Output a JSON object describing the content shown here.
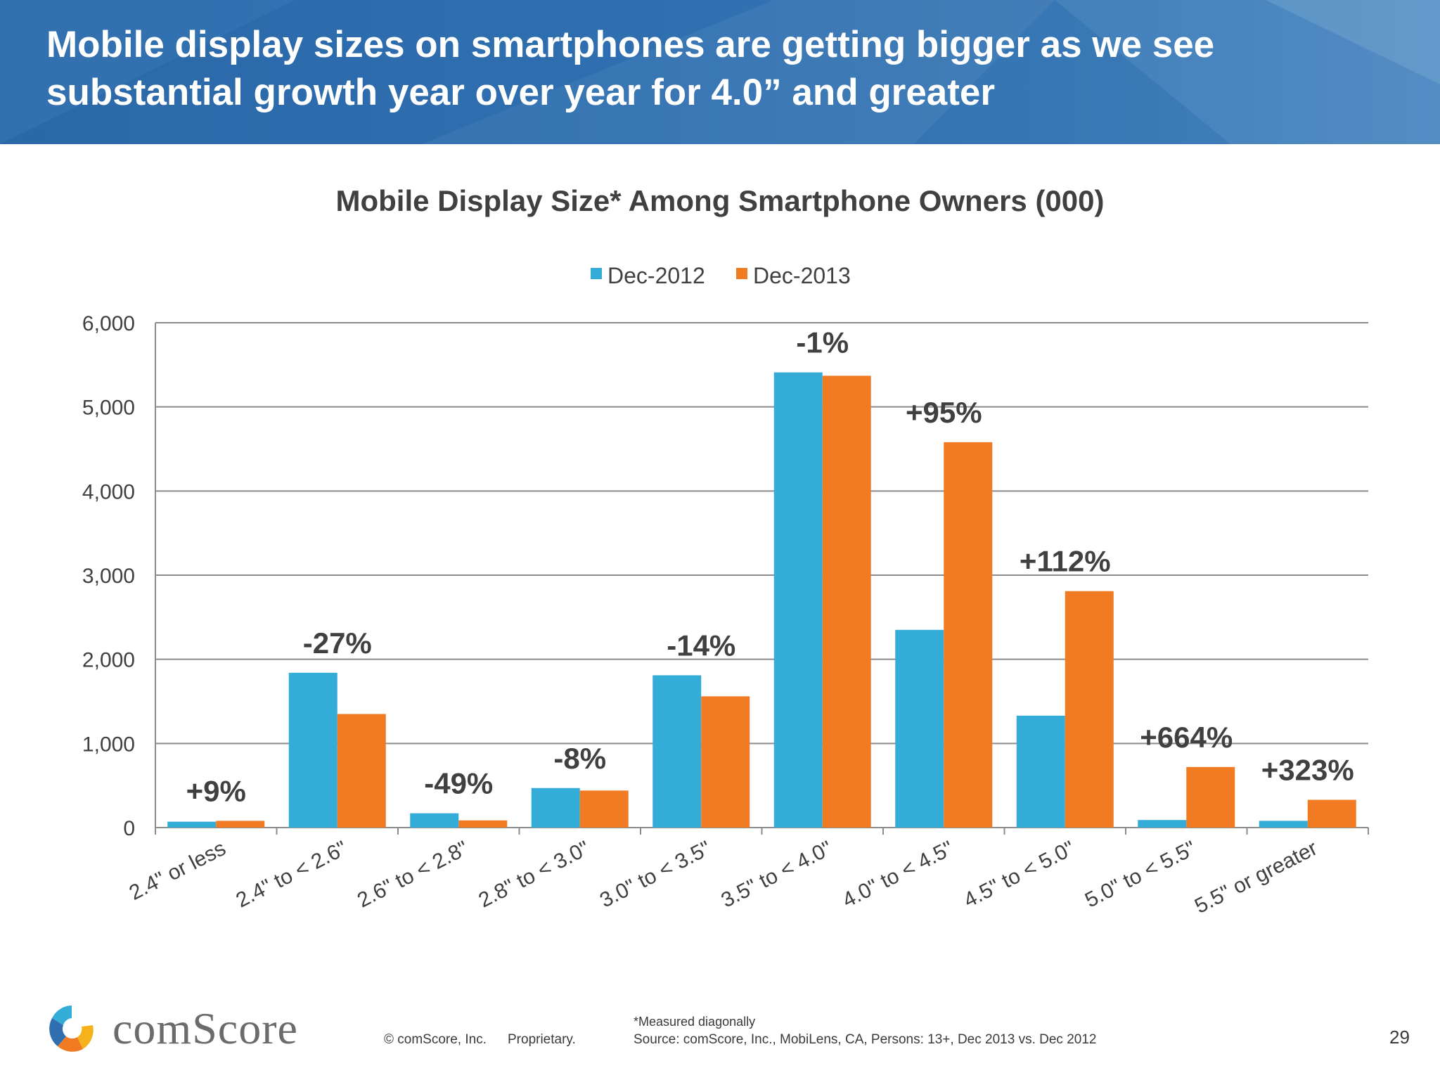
{
  "slide": {
    "title_line1": "Mobile display sizes on smartphones are getting bigger as we see",
    "title_line2": "substantial growth year over year for 4.0” and greater",
    "page_number": "29"
  },
  "footer": {
    "brand": "comScore",
    "copyright": "© comScore, Inc.",
    "proprietary": "Proprietary.",
    "note": "*Measured diagonally",
    "source": "Source: comScore, Inc., MobiLens, CA, Persons: 13+, Dec 2013 vs. Dec 2012"
  },
  "colors": {
    "dec2012": "#33acd7",
    "dec2013": "#f07b23",
    "banner": "#2f6fb0",
    "text": "#404040"
  },
  "chart_data": {
    "type": "bar",
    "title": "Mobile Display Size* Among Smartphone Owners (000)",
    "categories": [
      "2.4\" or less",
      "2.4\" to < 2.6\"",
      "2.6\" to < 2.8\"",
      "2.8\" to < 3.0\"",
      "3.0\" to < 3.5\"",
      "3.5\" to < 4.0\"",
      "4.0\" to < 4.5\"",
      "4.5\" to < 5.0\"",
      "5.0\" to < 5.5\"",
      "5.5\" or greater"
    ],
    "series": [
      {
        "name": "Dec-2012",
        "color": "#33acd7",
        "values": [
          70,
          1840,
          170,
          470,
          1810,
          5410,
          2350,
          1330,
          90,
          80
        ]
      },
      {
        "name": "Dec-2013",
        "color": "#f07b23",
        "values": [
          80,
          1350,
          85,
          440,
          1560,
          5370,
          4580,
          2810,
          720,
          330
        ]
      }
    ],
    "annotations": [
      "+9%",
      "-27%",
      "-49%",
      "-8%",
      "-14%",
      "-1%",
      "+95%",
      "+112%",
      "+664%",
      "+323%"
    ],
    "ylim": [
      0,
      6000
    ],
    "yticks": [
      0,
      1000,
      2000,
      3000,
      4000,
      5000,
      6000
    ],
    "ytick_labels": [
      "0",
      "1,000",
      "2,000",
      "3,000",
      "4,000",
      "5,000",
      "6,000"
    ],
    "grid": true,
    "legend_position": "top-center",
    "xlabel": "",
    "ylabel": ""
  }
}
